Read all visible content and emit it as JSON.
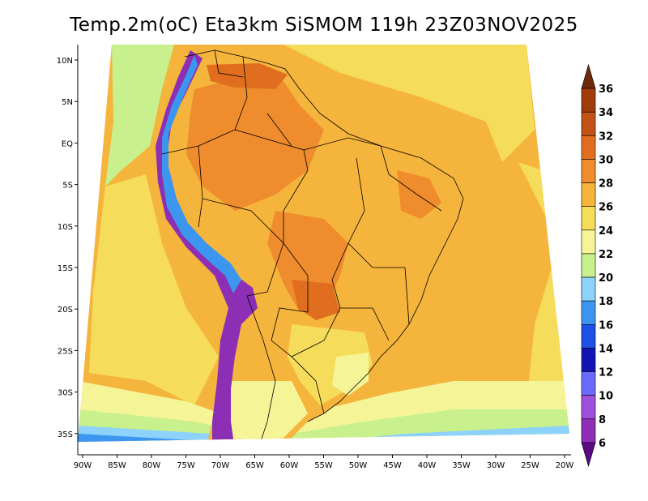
{
  "title": "Temp.2m(oC) Eta3km SiSMOM 119h 23Z03NOV2025",
  "axes": {
    "x_ticks": [
      "90W",
      "85W",
      "80W",
      "75W",
      "70W",
      "65W",
      "60W",
      "55W",
      "50W",
      "45W",
      "40W",
      "35W",
      "30W",
      "25W",
      "20W"
    ],
    "y_ticks": [
      "10N",
      "5N",
      "EQ",
      "5S",
      "10S",
      "15S",
      "20S",
      "25S",
      "30S",
      "35S"
    ]
  },
  "colorbar": {
    "levels": [
      "6",
      "8",
      "10",
      "12",
      "14",
      "16",
      "18",
      "20",
      "22",
      "24",
      "26",
      "28",
      "30",
      "32",
      "34",
      "36"
    ],
    "colors": [
      "#5a0a82",
      "#8c2fb4",
      "#a050dc",
      "#6a6aff",
      "#1414b4",
      "#1e50e6",
      "#3c96f0",
      "#8cd2fa",
      "#c8f08c",
      "#f5f598",
      "#f5dc5a",
      "#f5b43c",
      "#ef8c2d",
      "#e16e1e",
      "#c35014",
      "#a03c0a",
      "#6e280a"
    ]
  },
  "field_colors": {
    "warm": "#f5b43c",
    "hot": "#ef8c2d",
    "very_hot": "#e16e1e",
    "mild": "#f5dc5a",
    "cool": "#f5f598",
    "cold": "#c8f08c",
    "light_blue": "#8cd2fa",
    "mid_blue": "#3c96f0",
    "andes_purple": "#8c2fb4",
    "border": "#000000"
  }
}
